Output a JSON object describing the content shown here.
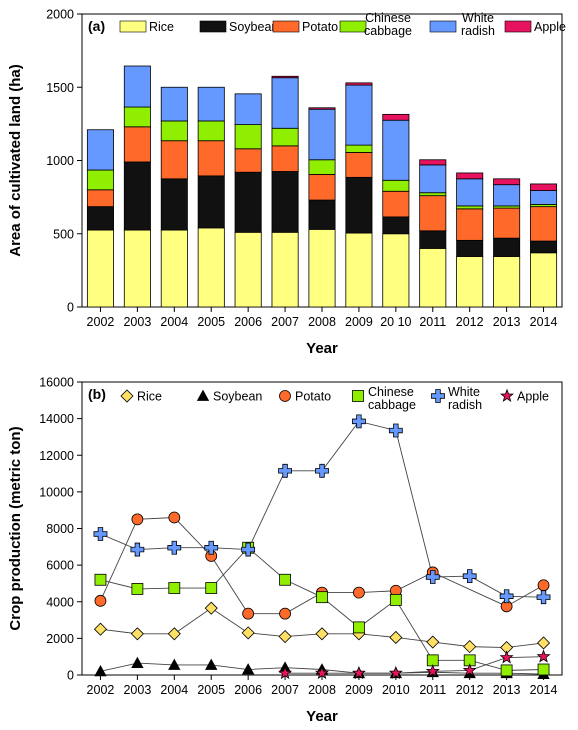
{
  "chart_data": [
    {
      "panel_label": "(a)",
      "type": "bar",
      "stacked": true,
      "xlabel": "Year",
      "ylabel": "Area of cultivated land (ha)",
      "ylim": [
        0,
        2000
      ],
      "yticks": [
        0,
        500,
        1000,
        1500,
        2000
      ],
      "categories": [
        "2002",
        "2003",
        "2004",
        "2005",
        "2006",
        "2007",
        "2008",
        "2009",
        "20 10",
        "2011",
        "2012",
        "2013",
        "2014"
      ],
      "series": [
        {
          "name": "Rice",
          "color": "#FFFF80",
          "values": [
            525,
            525,
            525,
            540,
            510,
            510,
            530,
            505,
            500,
            400,
            345,
            345,
            370
          ]
        },
        {
          "name": "Soybean",
          "color": "#111111",
          "values": [
            160,
            465,
            350,
            355,
            410,
            415,
            200,
            380,
            115,
            120,
            110,
            125,
            80
          ]
        },
        {
          "name": "Potato",
          "color": "#FF6A2A",
          "values": [
            115,
            240,
            260,
            240,
            160,
            175,
            175,
            170,
            175,
            240,
            215,
            205,
            235
          ]
        },
        {
          "name": "Chinese cabbage",
          "color": "#90EE00",
          "values": [
            135,
            135,
            135,
            135,
            165,
            120,
            100,
            50,
            75,
            20,
            20,
            15,
            15
          ]
        },
        {
          "name": "White radish",
          "color": "#6699FF",
          "values": [
            275,
            280,
            230,
            230,
            210,
            345,
            345,
            410,
            410,
            190,
            185,
            145,
            95
          ]
        },
        {
          "name": "Apple",
          "color": "#E8135F",
          "values": [
            0,
            0,
            0,
            0,
            0,
            10,
            10,
            15,
            40,
            35,
            40,
            40,
            45
          ]
        }
      ],
      "legend": {
        "placement": "top",
        "entries": [
          {
            "series": 0,
            "lines": [
              "Rice"
            ]
          },
          {
            "series": 1,
            "lines": [
              "Soybean"
            ]
          },
          {
            "series": 2,
            "lines": [
              "Potato"
            ]
          },
          {
            "series": 3,
            "lines": [
              "Chinese",
              "cabbage"
            ]
          },
          {
            "series": 4,
            "lines": [
              "White",
              "radish"
            ]
          },
          {
            "series": 5,
            "lines": [
              "Apple"
            ]
          }
        ]
      }
    },
    {
      "panel_label": "(b)",
      "type": "line",
      "xlabel": "Year",
      "ylabel": "Crop production (metric ton)",
      "ylim": [
        0,
        16000
      ],
      "yticks": [
        0,
        2000,
        4000,
        6000,
        8000,
        10000,
        12000,
        14000,
        16000
      ],
      "categories": [
        "2002",
        "2003",
        "2004",
        "2005",
        "2006",
        "2007",
        "2008",
        "2009",
        "2010",
        "2011",
        "2012",
        "2013",
        "2014"
      ],
      "series": [
        {
          "name": "Rice",
          "marker": "diamond",
          "color": "#FFE066",
          "values": [
            2500,
            2250,
            2250,
            3650,
            2300,
            2100,
            2250,
            2250,
            2050,
            1800,
            1550,
            1500,
            1750
          ]
        },
        {
          "name": "Soybean",
          "marker": "triangle",
          "color": "#000000",
          "values": [
            200,
            650,
            550,
            550,
            300,
            400,
            300,
            100,
            100,
            150,
            100,
            100,
            50
          ]
        },
        {
          "name": "Potato",
          "marker": "circle",
          "color": "#FF6A2A",
          "values": [
            4050,
            8500,
            8600,
            6500,
            3350,
            3350,
            4500,
            4500,
            4600,
            5600,
            null,
            3750,
            4900
          ]
        },
        {
          "name": "Chinese cabbage",
          "marker": "square",
          "color": "#90EE00",
          "values": [
            5200,
            4700,
            4750,
            4750,
            6950,
            5200,
            4250,
            2600,
            4100,
            800,
            800,
            250,
            300
          ]
        },
        {
          "name": "White radish",
          "marker": "plus",
          "color": "#6699FF",
          "values": [
            7700,
            6850,
            6950,
            6950,
            6850,
            11150,
            11150,
            13850,
            13350,
            5350,
            5400,
            4300,
            4250
          ]
        },
        {
          "name": "Apple",
          "marker": "star",
          "color": "#E8135F",
          "values": [
            null,
            null,
            null,
            null,
            null,
            100,
            100,
            100,
            100,
            200,
            250,
            950,
            1000
          ]
        }
      ],
      "legend": {
        "placement": "top",
        "entries": [
          {
            "series": 0,
            "lines": [
              "Rice"
            ]
          },
          {
            "series": 1,
            "lines": [
              "Soybean"
            ]
          },
          {
            "series": 2,
            "lines": [
              "Potato"
            ]
          },
          {
            "series": 3,
            "lines": [
              "Chinese",
              "cabbage"
            ]
          },
          {
            "series": 4,
            "lines": [
              "White",
              "radish"
            ]
          },
          {
            "series": 5,
            "lines": [
              "Apple"
            ]
          }
        ]
      }
    }
  ]
}
